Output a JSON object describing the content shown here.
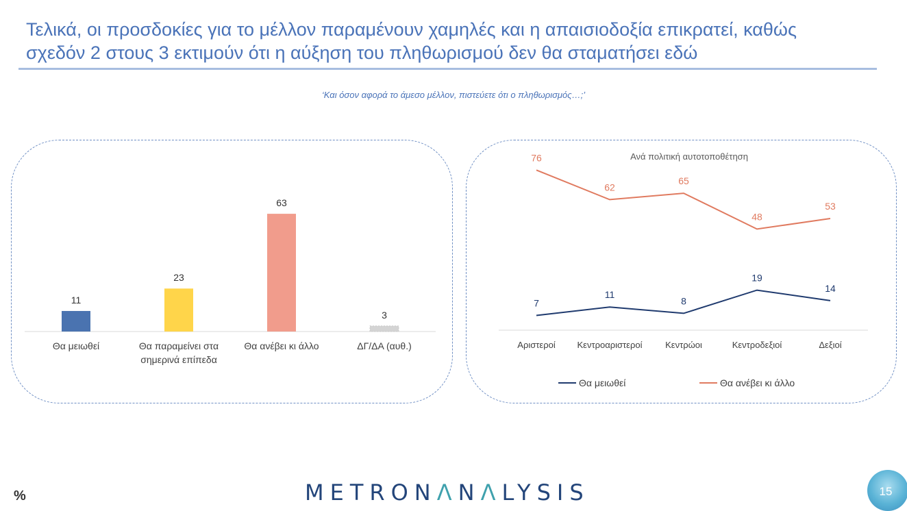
{
  "header": {
    "title_line1": "Τελικά, οι προσδοκίες για το μέλλον παραμένουν χαμηλές και η απαισιοδοξία επικρατεί, καθώς",
    "title_line2": "σχεδόν 2 στους 3 εκτιμούν ότι η αύξηση του πληθωρισμού δεν θα σταματήσει εδώ",
    "question": "‘Και όσον αφορά το άμεσο μέλλον, πιστεύετε ότι ο πληθωρισμός…;’"
  },
  "footer": {
    "unit": "%",
    "logo_part1": "METRON",
    "logo_lambda": "Λ",
    "logo_part2": "N",
    "logo_lambda2": "Λ",
    "logo_part3": "LYSIS",
    "page_number": "15"
  },
  "chart_data": [
    {
      "type": "bar",
      "categories": [
        [
          "Θα μειωθεί"
        ],
        [
          "Θα παραμείνει στα",
          "σημερινά επίπεδα"
        ],
        [
          "Θα ανέβει κι άλλο"
        ],
        [
          "ΔΓ/ΔΑ (αυθ.)"
        ]
      ],
      "values": [
        11,
        23,
        63,
        3
      ],
      "colors": [
        "#4a73b0",
        "#ffd54a",
        "#f19c8c",
        "#d4d4d4"
      ],
      "ylim": [
        0,
        70
      ]
    },
    {
      "type": "line",
      "title": "Ανά πολιτική αυτοτοποθέτηση",
      "categories": [
        "Αριστεροί",
        "Κεντροαριστεροί",
        "Κεντρώοι",
        "Κεντροδεξιοί",
        "Δεξιοί"
      ],
      "series": [
        {
          "name": "Θα μειωθεί",
          "values": [
            7,
            11,
            8,
            19,
            14
          ],
          "color": "#1f3a6e"
        },
        {
          "name": "Θα ανέβει κι άλλο",
          "values": [
            76,
            62,
            65,
            48,
            53
          ],
          "color": "#e07a5f"
        }
      ],
      "ylim": [
        0,
        80
      ],
      "legend": "bottom"
    }
  ]
}
